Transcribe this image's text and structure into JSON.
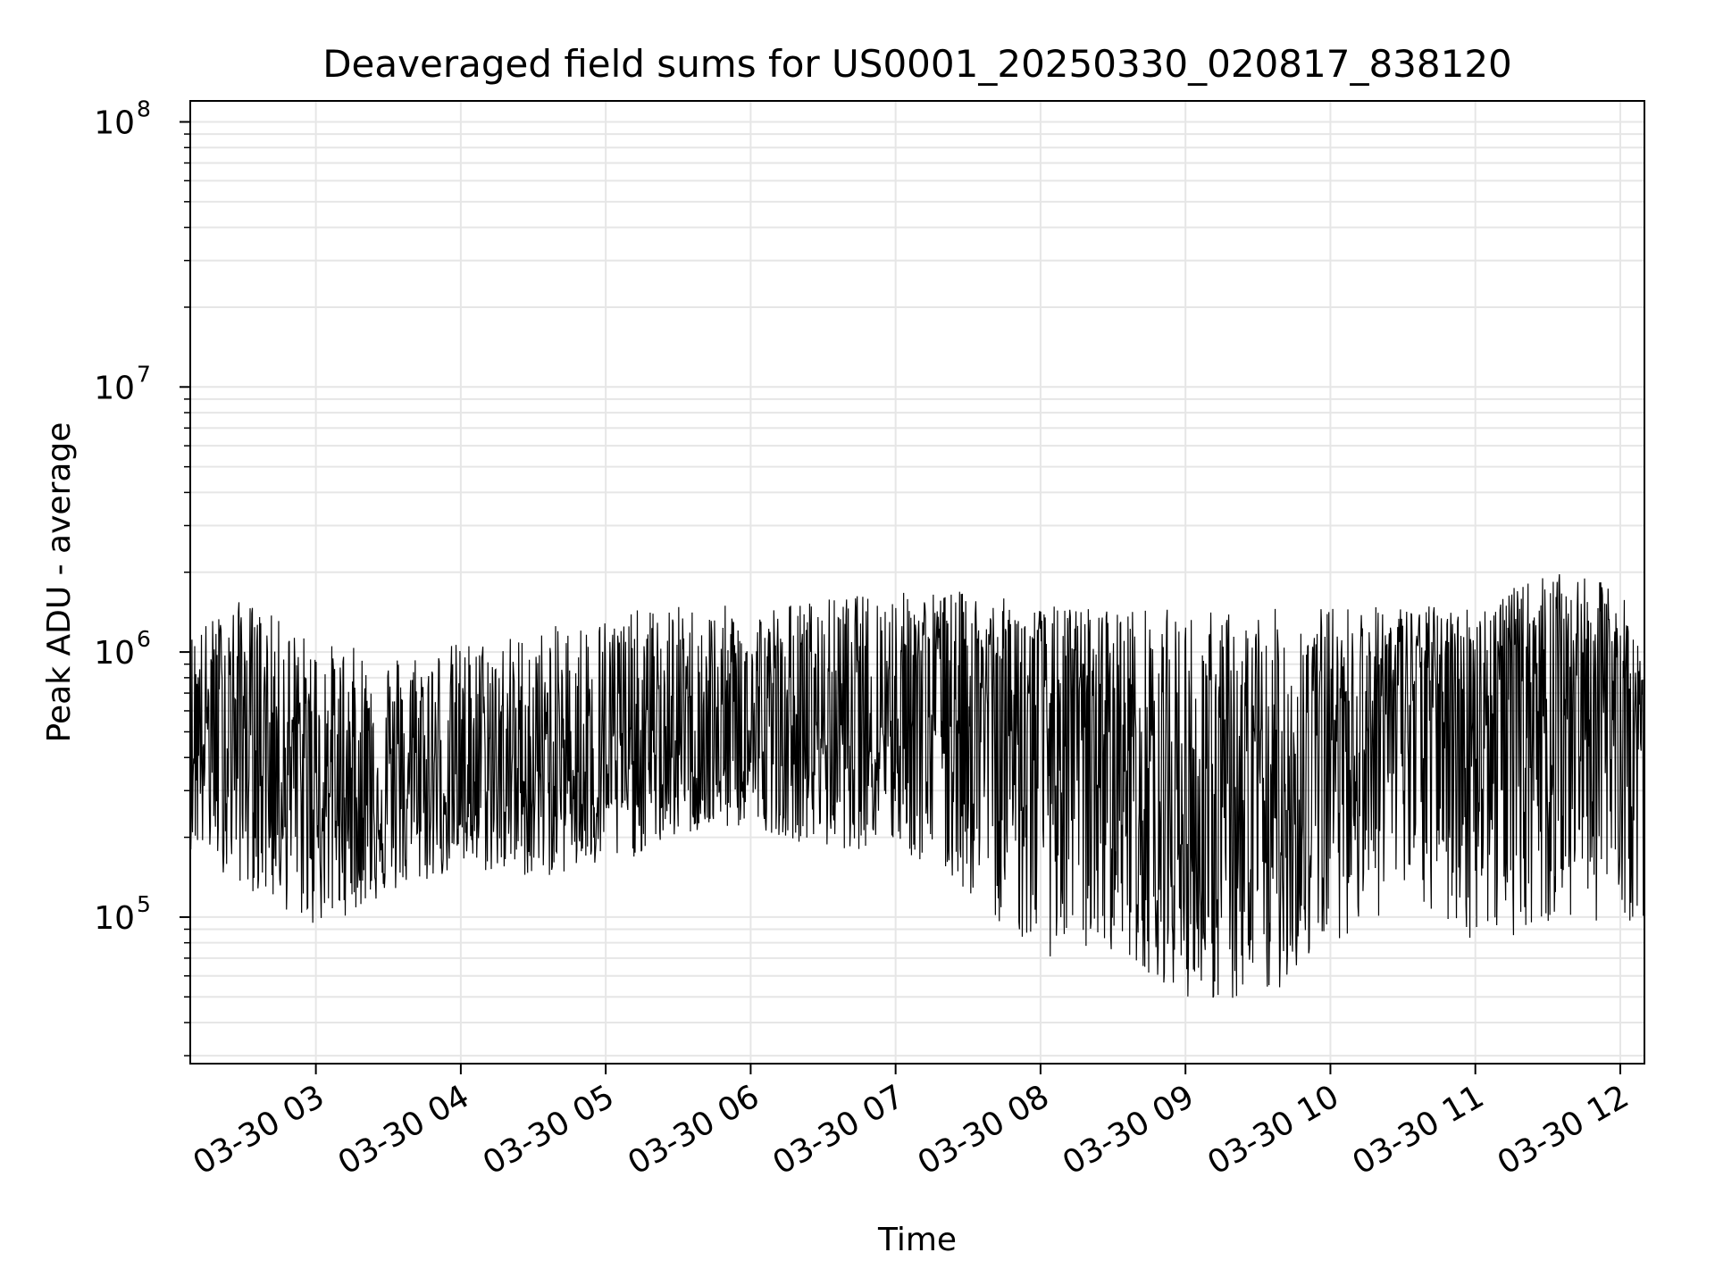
{
  "chart_data": {
    "type": "line",
    "title": "Deaveraged field sums for US0001_20250330_020817_838120",
    "xlabel": "Time",
    "ylabel": "Peak ADU - average",
    "y_scale": "log",
    "grid": "on (major and minor)",
    "legend": "none",
    "x_range": [
      "2025-03-30 02:08",
      "2025-03-30 12:10"
    ],
    "y_range": [
      28000,
      120000000
    ],
    "x_ticks": [
      {
        "value": "2025-03-30 03:00",
        "label": "03-30 03"
      },
      {
        "value": "2025-03-30 04:00",
        "label": "03-30 04"
      },
      {
        "value": "2025-03-30 05:00",
        "label": "03-30 05"
      },
      {
        "value": "2025-03-30 06:00",
        "label": "03-30 06"
      },
      {
        "value": "2025-03-30 07:00",
        "label": "03-30 07"
      },
      {
        "value": "2025-03-30 08:00",
        "label": "03-30 08"
      },
      {
        "value": "2025-03-30 09:00",
        "label": "03-30 09"
      },
      {
        "value": "2025-03-30 10:00",
        "label": "03-30 10"
      },
      {
        "value": "2025-03-30 11:00",
        "label": "03-30 11"
      },
      {
        "value": "2025-03-30 12:00",
        "label": "03-30 12"
      }
    ],
    "y_ticks": [
      {
        "value": 100000,
        "base": "10",
        "exp": "5"
      },
      {
        "value": 1000000,
        "base": "10",
        "exp": "6"
      },
      {
        "value": 10000000,
        "base": "10",
        "exp": "7"
      },
      {
        "value": 100000000,
        "base": "10",
        "exp": "8"
      }
    ],
    "series": [
      {
        "color": "#000000",
        "envelope": [
          {
            "t": "2025-03-30 02:08",
            "low": 180000,
            "high": 1200000,
            "median": 500000
          },
          {
            "t": "2025-03-30 02:30",
            "low": 130000,
            "high": 1600000,
            "median": 550000
          },
          {
            "t": "2025-03-30 03:00",
            "low": 90000,
            "high": 1100000,
            "median": 300000
          },
          {
            "t": "2025-03-30 03:30",
            "low": 120000,
            "high": 1000000,
            "median": 280000
          },
          {
            "t": "2025-03-30 04:00",
            "low": 150000,
            "high": 1100000,
            "median": 320000
          },
          {
            "t": "2025-03-30 04:30",
            "low": 140000,
            "high": 1200000,
            "median": 330000
          },
          {
            "t": "2025-03-30 05:00",
            "low": 150000,
            "high": 1400000,
            "median": 380000
          },
          {
            "t": "2025-03-30 05:30",
            "low": 200000,
            "high": 1500000,
            "median": 420000
          },
          {
            "t": "2025-03-30 06:00",
            "low": 220000,
            "high": 1500000,
            "median": 420000
          },
          {
            "t": "2025-03-30 06:30",
            "low": 180000,
            "high": 1600000,
            "median": 500000
          },
          {
            "t": "2025-03-30 07:00",
            "low": 180000,
            "high": 1700000,
            "median": 650000
          },
          {
            "t": "2025-03-30 07:30",
            "low": 120000,
            "high": 1700000,
            "median": 700000
          },
          {
            "t": "2025-03-30 08:00",
            "low": 70000,
            "high": 1500000,
            "median": 500000
          },
          {
            "t": "2025-03-30 08:30",
            "low": 75000,
            "high": 1500000,
            "median": 450000
          },
          {
            "t": "2025-03-30 09:00",
            "low": 50000,
            "high": 1450000,
            "median": 200000
          },
          {
            "t": "2025-03-30 09:30",
            "low": 45000,
            "high": 1450000,
            "median": 180000
          },
          {
            "t": "2025-03-30 10:00",
            "low": 80000,
            "high": 1500000,
            "median": 500000
          },
          {
            "t": "2025-03-30 10:30",
            "low": 110000,
            "high": 1500000,
            "median": 700000
          },
          {
            "t": "2025-03-30 11:00",
            "low": 80000,
            "high": 1500000,
            "median": 650000
          },
          {
            "t": "2025-03-30 11:30",
            "low": 90000,
            "high": 2000000,
            "median": 800000
          },
          {
            "t": "2025-03-30 12:00",
            "low": 100000,
            "high": 1800000,
            "median": 700000
          },
          {
            "t": "2025-03-30 12:10",
            "low": 90000,
            "high": 900000,
            "median": 450000
          }
        ]
      }
    ]
  }
}
